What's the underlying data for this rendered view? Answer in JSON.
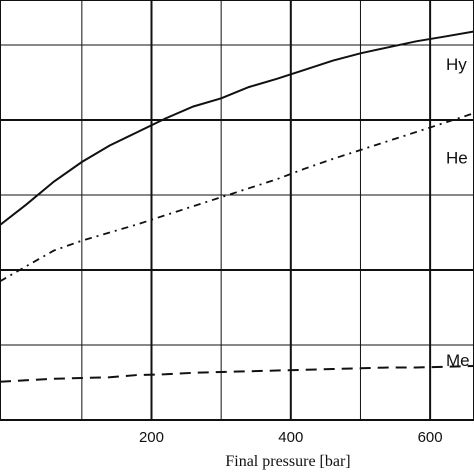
{
  "chart_data": {
    "type": "line",
    "title": "",
    "xlabel": "Final pressure [bar]",
    "ylabel": "",
    "xlim": [
      -17.5,
      663
    ],
    "ylim": [
      0,
      5.6
    ],
    "x_ticks": [
      200,
      400,
      600
    ],
    "grid": true,
    "series": [
      {
        "name": "Hy",
        "style": "solid",
        "points": [
          [
            -17.5,
            2.6
          ],
          [
            20,
            2.87
          ],
          [
            60,
            3.18
          ],
          [
            100,
            3.44
          ],
          [
            140,
            3.66
          ],
          [
            180,
            3.84
          ],
          [
            220,
            4.02
          ],
          [
            260,
            4.18
          ],
          [
            300,
            4.29
          ],
          [
            340,
            4.44
          ],
          [
            380,
            4.55
          ],
          [
            420,
            4.67
          ],
          [
            460,
            4.79
          ],
          [
            500,
            4.89
          ],
          [
            540,
            4.97
          ],
          [
            580,
            5.05
          ],
          [
            620,
            5.11
          ],
          [
            663,
            5.18
          ]
        ]
      },
      {
        "name": "He",
        "style": "dash-dot",
        "points": [
          [
            -17.5,
            1.85
          ],
          [
            20,
            2.05
          ],
          [
            60,
            2.26
          ],
          [
            100,
            2.39
          ],
          [
            140,
            2.5
          ],
          [
            180,
            2.61
          ],
          [
            220,
            2.73
          ],
          [
            260,
            2.85
          ],
          [
            300,
            2.97
          ],
          [
            340,
            3.09
          ],
          [
            380,
            3.21
          ],
          [
            420,
            3.35
          ],
          [
            460,
            3.48
          ],
          [
            500,
            3.6
          ],
          [
            540,
            3.72
          ],
          [
            580,
            3.84
          ],
          [
            620,
            3.96
          ],
          [
            663,
            4.09
          ]
        ]
      },
      {
        "name": "Me",
        "style": "dashed",
        "points": [
          [
            -17.5,
            0.51
          ],
          [
            20,
            0.53
          ],
          [
            60,
            0.55
          ],
          [
            100,
            0.56
          ],
          [
            140,
            0.57
          ],
          [
            180,
            0.6
          ],
          [
            220,
            0.61
          ],
          [
            260,
            0.63
          ],
          [
            300,
            0.64
          ],
          [
            340,
            0.65
          ],
          [
            380,
            0.66
          ],
          [
            420,
            0.67
          ],
          [
            460,
            0.68
          ],
          [
            500,
            0.69
          ],
          [
            540,
            0.7
          ],
          [
            580,
            0.7
          ],
          [
            620,
            0.71
          ],
          [
            663,
            0.72
          ]
        ]
      }
    ]
  }
}
